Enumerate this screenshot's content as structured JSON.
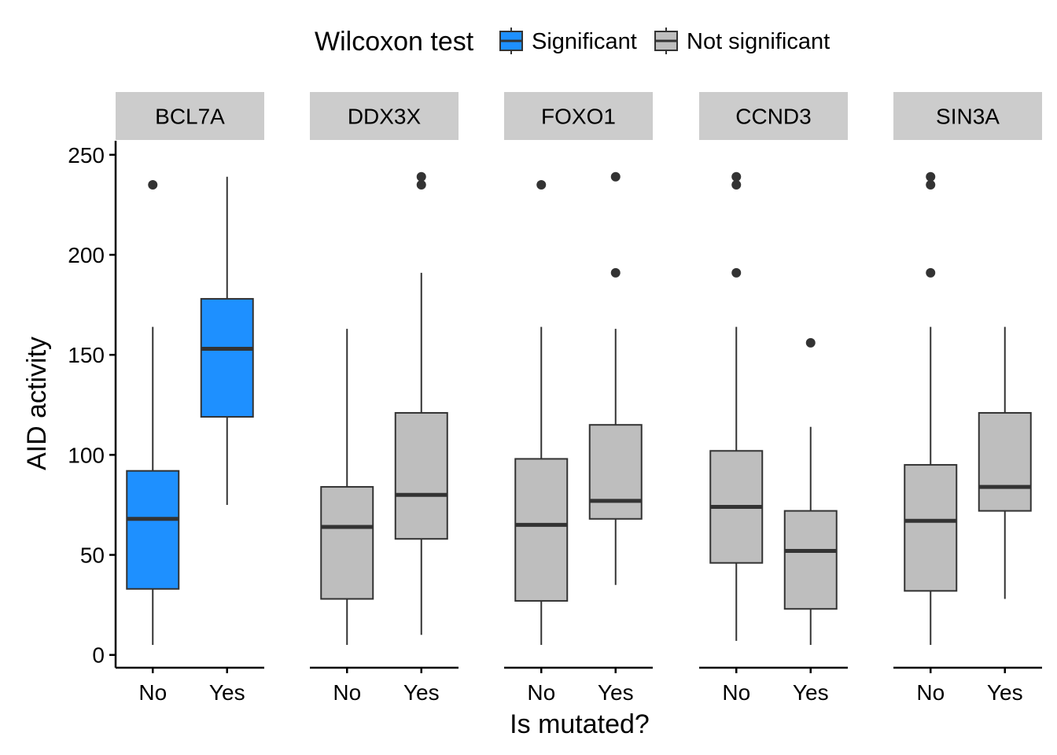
{
  "chart_data": {
    "type": "box",
    "xlabel": "Is mutated?",
    "ylabel": "AID activity",
    "ylim": [
      -6,
      257
    ],
    "yticks": [
      0,
      50,
      100,
      150,
      200,
      250
    ],
    "categories": [
      "No",
      "Yes"
    ],
    "grid": false,
    "legend": {
      "title": "Wilcoxon test",
      "position": "top",
      "entries": [
        {
          "label": "Significant",
          "color": "#1e90ff"
        },
        {
          "label": "Not significant",
          "color": "#bebebe"
        }
      ]
    },
    "facets": [
      {
        "label": "BCL7A",
        "boxes": [
          {
            "category": "No",
            "group": "Significant",
            "whisker_low": 5,
            "q1": 33,
            "median": 68,
            "q3": 92,
            "whisker_high": 164,
            "outliers": [
              235
            ]
          },
          {
            "category": "Yes",
            "group": "Significant",
            "whisker_low": 75,
            "q1": 119,
            "median": 153,
            "q3": 178,
            "whisker_high": 239,
            "outliers": []
          }
        ]
      },
      {
        "label": "DDX3X",
        "boxes": [
          {
            "category": "No",
            "group": "Not significant",
            "whisker_low": 5,
            "q1": 28,
            "median": 64,
            "q3": 84,
            "whisker_high": 163,
            "outliers": []
          },
          {
            "category": "Yes",
            "group": "Not significant",
            "whisker_low": 10,
            "q1": 58,
            "median": 80,
            "q3": 121,
            "whisker_high": 191,
            "outliers": [
              235,
              239
            ]
          }
        ]
      },
      {
        "label": "FOXO1",
        "boxes": [
          {
            "category": "No",
            "group": "Not significant",
            "whisker_low": 5,
            "q1": 27,
            "median": 65,
            "q3": 98,
            "whisker_high": 164,
            "outliers": [
              235
            ]
          },
          {
            "category": "Yes",
            "group": "Not significant",
            "whisker_low": 35,
            "q1": 68,
            "median": 77,
            "q3": 115,
            "whisker_high": 163,
            "outliers": [
              191,
              239
            ]
          }
        ]
      },
      {
        "label": "CCND3",
        "boxes": [
          {
            "category": "No",
            "group": "Not significant",
            "whisker_low": 7,
            "q1": 46,
            "median": 74,
            "q3": 102,
            "whisker_high": 164,
            "outliers": [
              191,
              235,
              239
            ]
          },
          {
            "category": "Yes",
            "group": "Not significant",
            "whisker_low": 5,
            "q1": 23,
            "median": 52,
            "q3": 72,
            "whisker_high": 114,
            "outliers": [
              156
            ]
          }
        ]
      },
      {
        "label": "SIN3A",
        "boxes": [
          {
            "category": "No",
            "group": "Not significant",
            "whisker_low": 5,
            "q1": 32,
            "median": 67,
            "q3": 95,
            "whisker_high": 164,
            "outliers": [
              191,
              235,
              239
            ]
          },
          {
            "category": "Yes",
            "group": "Not significant",
            "whisker_low": 28,
            "q1": 72,
            "median": 84,
            "q3": 121,
            "whisker_high": 164,
            "outliers": []
          }
        ]
      }
    ]
  }
}
